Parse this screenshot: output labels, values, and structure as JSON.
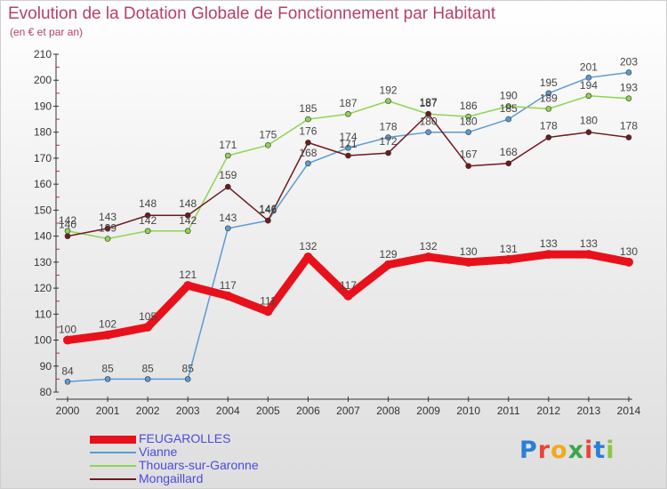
{
  "header": {
    "title": "Evolution de la Dotation Globale de Fonctionnement par Habitant",
    "subtitle": "(en € et par an)"
  },
  "brand": {
    "logo_text": "Proxiti",
    "letter_colors": [
      "#2b7fd6",
      "#e8463a",
      "#f2a91c",
      "#3aa64a",
      "#e8463a",
      "#2b7fd6",
      "#8dc63f"
    ]
  },
  "chart_data": {
    "type": "line",
    "title": "Evolution de la Dotation Globale de Fonctionnement par Habitant",
    "subtitle": "(en € et par an)",
    "x": [
      "2000",
      "2001",
      "2002",
      "2003",
      "2004",
      "2005",
      "2006",
      "2007",
      "2008",
      "2009",
      "2010",
      "2011",
      "2012",
      "2013",
      "2014"
    ],
    "ylim": [
      80,
      210
    ],
    "yticks": [
      80,
      90,
      100,
      110,
      120,
      130,
      140,
      150,
      160,
      170,
      180,
      190,
      200,
      210
    ],
    "grid": false,
    "legend_position": "bottom-left",
    "series": [
      {
        "name": "FEUGAROLLES",
        "color": "#e8111b",
        "values": [
          100,
          102,
          105,
          121,
          117,
          111,
          132,
          117,
          129,
          132,
          130,
          131,
          133,
          133,
          130
        ]
      },
      {
        "name": "Vianne",
        "color": "#5b9bd5",
        "values": [
          84,
          85,
          85,
          85,
          143,
          146,
          168,
          174,
          178,
          180,
          180,
          185,
          195,
          201,
          203
        ]
      },
      {
        "name": "Thouars-sur-Garonne",
        "color": "#8ed452",
        "values": [
          142,
          139,
          142,
          142,
          171,
          175,
          185,
          187,
          192,
          187,
          186,
          190,
          189,
          194,
          193
        ]
      },
      {
        "name": "Mongaillard",
        "color": "#6e1a1f",
        "values": [
          140,
          143,
          148,
          148,
          159,
          146,
          176,
          171,
          172,
          187,
          167,
          168,
          178,
          180,
          178
        ]
      }
    ]
  }
}
